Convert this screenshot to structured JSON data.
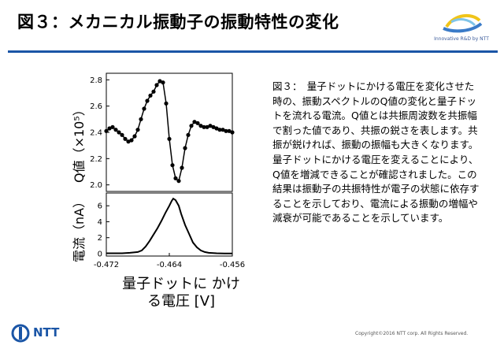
{
  "slide": {
    "title": "図３：メカニカル振動子の振動特性の変化",
    "logo_tagline": "Innovative R&D by NTT",
    "description": "図３：　量子ドットにかける電圧を変化させた時の、振動スペクトルのQ値の変化と量子ドットを流れる電流。Q値とは共振周波数を共振幅で割った値であり、共振の鋭さを表します。共振が鋭ければ、振動の振幅も大きくなります。量子ドットにかける電圧を変えることにより、Q値を増減できることが確認されました。この結果は振動子の共振特性が電子の状態に依存することを示しており、電流による振動の増幅や減衰が可能であることを示しています。",
    "footer_brand": "NTT",
    "copyright": "Copyright©2016 NTT corp. All Rights Reserved.",
    "colors": {
      "accent": "#1a55a6",
      "plot": "#000000"
    }
  },
  "chart_data": [
    {
      "type": "scatter",
      "ylabel": "Q値（×10⁵）",
      "ytick_labels": [
        "2.0",
        "2.2",
        "2.4",
        "2.6",
        "2.8"
      ],
      "ylim": [
        1.95,
        2.85
      ],
      "xlim": [
        -0.472,
        -0.456
      ],
      "x": [
        -0.472,
        -0.4716,
        -0.4712,
        -0.4708,
        -0.4704,
        -0.47,
        -0.4696,
        -0.4692,
        -0.4688,
        -0.4684,
        -0.468,
        -0.4676,
        -0.4672,
        -0.4668,
        -0.4664,
        -0.466,
        -0.4656,
        -0.4652,
        -0.4648,
        -0.4644,
        -0.464,
        -0.4636,
        -0.4632,
        -0.4628,
        -0.4624,
        -0.462,
        -0.4616,
        -0.4612,
        -0.4608,
        -0.4604,
        -0.46,
        -0.4596,
        -0.4592,
        -0.4588,
        -0.4584,
        -0.458,
        -0.4576,
        -0.4572,
        -0.4568,
        -0.4564,
        -0.456
      ],
      "values": [
        2.41,
        2.43,
        2.44,
        2.42,
        2.4,
        2.38,
        2.35,
        2.33,
        2.34,
        2.37,
        2.42,
        2.5,
        2.58,
        2.64,
        2.68,
        2.71,
        2.76,
        2.79,
        2.78,
        2.62,
        2.35,
        2.15,
        2.05,
        2.03,
        2.13,
        2.28,
        2.38,
        2.45,
        2.48,
        2.47,
        2.45,
        2.44,
        2.44,
        2.45,
        2.44,
        2.43,
        2.42,
        2.42,
        2.41,
        2.41,
        2.4
      ]
    },
    {
      "type": "line",
      "xlabel": "量子ドットに かける電圧 [V]",
      "ylabel": "電流（nA）",
      "ytick_labels": [
        "0",
        "2",
        "4",
        "6"
      ],
      "xtick_labels": [
        "-0.472",
        "-0.464",
        "-0.456"
      ],
      "ylim": [
        -0.3,
        7.6
      ],
      "xlim": [
        -0.472,
        -0.456
      ],
      "x": [
        -0.472,
        -0.47,
        -0.469,
        -0.468,
        -0.4675,
        -0.467,
        -0.4665,
        -0.466,
        -0.4655,
        -0.465,
        -0.4645,
        -0.464,
        -0.4637,
        -0.4635,
        -0.4632,
        -0.4628,
        -0.4625,
        -0.462,
        -0.4615,
        -0.461,
        -0.4605,
        -0.46,
        -0.4595,
        -0.459,
        -0.458,
        -0.457,
        -0.456
      ],
      "values": [
        0.05,
        0.05,
        0.1,
        0.2,
        0.4,
        0.9,
        1.6,
        2.4,
        3.2,
        4.1,
        5.1,
        6.0,
        6.6,
        6.9,
        6.7,
        6.0,
        5.0,
        3.6,
        2.5,
        1.4,
        0.8,
        0.4,
        0.2,
        0.1,
        0.05,
        0.03,
        0.02
      ]
    }
  ]
}
